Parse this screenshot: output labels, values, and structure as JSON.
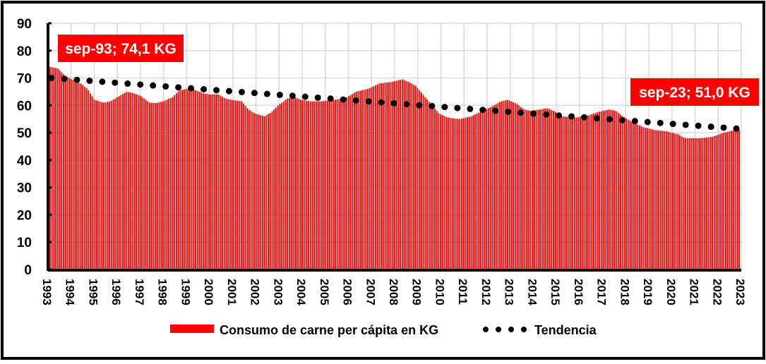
{
  "chart_data": {
    "type": "bar",
    "title": "",
    "xlabel": "",
    "ylabel": "",
    "ylim": [
      0,
      90
    ],
    "yticks": [
      "0",
      "10",
      "20",
      "30",
      "40",
      "50",
      "60",
      "70",
      "80",
      "90"
    ],
    "xticks": [
      "1993",
      "1994",
      "1995",
      "1996",
      "1997",
      "1998",
      "1999",
      "2000",
      "2001",
      "2002",
      "2003",
      "2004",
      "2005",
      "2006",
      "2007",
      "2008",
      "2009",
      "2010",
      "2011",
      "2012",
      "2013",
      "2014",
      "2015",
      "2016",
      "2017",
      "2018",
      "2019",
      "2020",
      "2021",
      "2022",
      "2023"
    ],
    "grid": true,
    "frequency": "monthly",
    "start": "sep-1993",
    "end": "sep-2023",
    "series": [
      {
        "name": "Consumo de carne per cápita en KG",
        "color": "#ff0000",
        "points": [
          [
            1993.67,
            74.1
          ],
          [
            1994.0,
            73.5
          ],
          [
            1994.3,
            71
          ],
          [
            1994.6,
            69.5
          ],
          [
            1995.0,
            68
          ],
          [
            1995.3,
            66
          ],
          [
            1995.6,
            62
          ],
          [
            1996.0,
            61
          ],
          [
            1996.3,
            61.5
          ],
          [
            1996.6,
            63
          ],
          [
            1997.0,
            65
          ],
          [
            1997.3,
            64.5
          ],
          [
            1997.6,
            63.5
          ],
          [
            1998.0,
            61
          ],
          [
            1998.3,
            60.8
          ],
          [
            1998.6,
            61.5
          ],
          [
            1999.0,
            63
          ],
          [
            1999.3,
            65.5
          ],
          [
            1999.6,
            66
          ],
          [
            2000.0,
            65.5
          ],
          [
            2000.3,
            64.5
          ],
          [
            2000.6,
            64
          ],
          [
            2001.0,
            64
          ],
          [
            2001.3,
            62.5
          ],
          [
            2001.6,
            62
          ],
          [
            2002.0,
            61.5
          ],
          [
            2002.3,
            58.5
          ],
          [
            2002.6,
            57
          ],
          [
            2003.0,
            56
          ],
          [
            2003.3,
            57.5
          ],
          [
            2003.6,
            60
          ],
          [
            2004.0,
            62.5
          ],
          [
            2004.3,
            63
          ],
          [
            2004.6,
            62
          ],
          [
            2005.0,
            61.5
          ],
          [
            2005.5,
            61.5
          ],
          [
            2006.0,
            62
          ],
          [
            2006.5,
            62.5
          ],
          [
            2007.0,
            65
          ],
          [
            2007.5,
            66
          ],
          [
            2008.0,
            68
          ],
          [
            2008.5,
            68.5
          ],
          [
            2009.0,
            69.5
          ],
          [
            2009.3,
            68.5
          ],
          [
            2009.6,
            67
          ],
          [
            2010.0,
            63
          ],
          [
            2010.3,
            60
          ],
          [
            2010.6,
            57
          ],
          [
            2011.0,
            55.5
          ],
          [
            2011.5,
            55
          ],
          [
            2012.0,
            56
          ],
          [
            2012.5,
            58
          ],
          [
            2013.0,
            60
          ],
          [
            2013.3,
            61.5
          ],
          [
            2013.6,
            62
          ],
          [
            2014.0,
            60.5
          ],
          [
            2014.3,
            58.5
          ],
          [
            2014.6,
            58
          ],
          [
            2015.0,
            58.5
          ],
          [
            2015.3,
            59
          ],
          [
            2015.6,
            58
          ],
          [
            2016.0,
            56
          ],
          [
            2016.5,
            55.5
          ],
          [
            2017.0,
            56
          ],
          [
            2017.5,
            57.5
          ],
          [
            2018.0,
            58.5
          ],
          [
            2018.3,
            58
          ],
          [
            2018.6,
            56
          ],
          [
            2019.0,
            54
          ],
          [
            2019.5,
            52
          ],
          [
            2020.0,
            51
          ],
          [
            2020.5,
            50.5
          ],
          [
            2021.0,
            49.5
          ],
          [
            2021.3,
            48
          ],
          [
            2021.6,
            48
          ],
          [
            2022.0,
            48
          ],
          [
            2022.5,
            48.5
          ],
          [
            2023.0,
            50
          ],
          [
            2023.5,
            51
          ],
          [
            2023.67,
            51.0
          ]
        ]
      },
      {
        "name": "Tendencia",
        "type": "trendline-dotted",
        "color": "#000000",
        "start_value": 70.0,
        "end_value": 51.5
      }
    ],
    "annotations": [
      {
        "text": "sep-93; 74,1 KG",
        "date": "sep-93",
        "value": 74.1
      },
      {
        "text": "sep-23; 51,0 KG",
        "date": "sep-23",
        "value": 51.0
      }
    ],
    "legend": {
      "placement": "bottom",
      "entries": [
        "Consumo de carne per cápita en KG",
        "Tendencia"
      ]
    }
  }
}
